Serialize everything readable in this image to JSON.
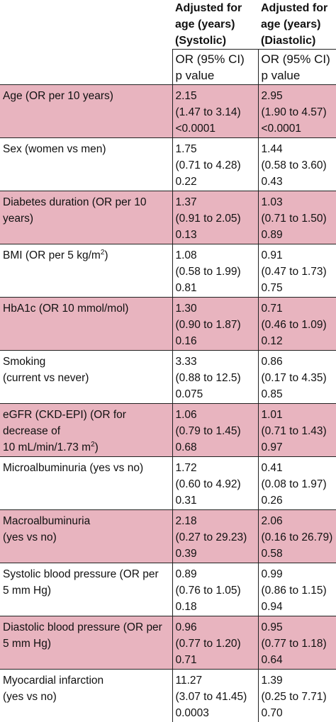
{
  "header": {
    "col2_title": [
      "Adjusted for",
      "age (years)",
      "(Systolic)"
    ],
    "col3_title": [
      "Adjusted for",
      "age (years)",
      "(Diastolic)"
    ],
    "col2_sub": [
      "OR (95% CI)",
      "p value"
    ],
    "col3_sub": [
      "OR (95% CI)",
      "p value"
    ]
  },
  "rows": [
    {
      "label": [
        "Age (OR per 10 years)"
      ],
      "sys": [
        "2.15",
        "(1.47 to 3.14)",
        "<0.0001"
      ],
      "dia": [
        "2.95",
        "(1.90 to 4.57)",
        "<0.0001"
      ]
    },
    {
      "label": [
        "Sex (women vs men)"
      ],
      "sys": [
        "1.75",
        "(0.71 to 4.28)",
        "0.22"
      ],
      "dia": [
        "1.44",
        "(0.58 to 3.60)",
        "0.43"
      ]
    },
    {
      "label": [
        "Diabetes duration (OR per 10 years)"
      ],
      "sys": [
        "1.37",
        "(0.91 to 2.05)",
        "0.13"
      ],
      "dia": [
        "1.03",
        "(0.71 to 1.50)",
        "0.89"
      ]
    },
    {
      "label": [
        "BMI (OR per 5 kg/m"
      ],
      "label_sup": "2",
      "label_tail": ")",
      "sys": [
        "1.08",
        "(0.58 to 1.99)",
        "0.81"
      ],
      "dia": [
        "0.91",
        "(0.47 to 1.73)",
        "0.75"
      ]
    },
    {
      "label": [
        "HbA1c (OR 10 mmol/mol)"
      ],
      "sys": [
        "1.30",
        "(0.90 to 1.87)",
        "0.16"
      ],
      "dia": [
        "0.71",
        "(0.46 to 1.09)",
        "0.12"
      ]
    },
    {
      "label": [
        "Smoking",
        "(current vs never)"
      ],
      "sys": [
        "3.33",
        "(0.88 to 12.5)",
        "0.075"
      ],
      "dia": [
        "0.86",
        "(0.17 to 4.35)",
        "0.85"
      ]
    },
    {
      "label": [
        "eGFR (CKD-EPI) (OR for decrease of",
        "10 mL/min/1.73 m"
      ],
      "label_sup": "2",
      "label_tail": ")",
      "sys": [
        "1.06",
        "(0.79 to 1.45)",
        "0.68"
      ],
      "dia": [
        "1.01",
        "(0.71 to 1.43)",
        "0.97"
      ]
    },
    {
      "label": [
        "Microalbuminuria (yes vs no)"
      ],
      "sys": [
        "1.72",
        "(0.60 to 4.92)",
        "0.31"
      ],
      "dia": [
        "0.41",
        "(0.08 to 1.97)",
        "0.26"
      ]
    },
    {
      "label": [
        "Macroalbuminuria",
        "(yes vs no)"
      ],
      "sys": [
        "2.18",
        "(0.27 to 29.23)",
        "0.39"
      ],
      "dia": [
        "2.06",
        "(0.16 to 26.79)",
        "0.58"
      ]
    },
    {
      "label": [
        "Systolic blood pressure (OR per",
        "5 mm Hg)"
      ],
      "sys": [
        "0.89",
        "(0.76 to 1.05)",
        "0.18"
      ],
      "dia": [
        "0.99",
        "(0.86 to 1.15)",
        "0.94"
      ]
    },
    {
      "label": [
        "Diastolic blood pressure (OR per",
        "5 mm Hg)"
      ],
      "sys": [
        "0.96",
        "(0.77 to 1.20)",
        "0.71"
      ],
      "dia": [
        "0.95",
        "(0.77 to 1.18)",
        "0.64"
      ]
    },
    {
      "label": [
        "Myocardial infarction",
        "(yes vs no)"
      ],
      "sys": [
        "11.27",
        "(3.07 to 41.45)",
        "0.0003"
      ],
      "dia": [
        "1.39",
        "(0.25 to 7.71)",
        "0.70"
      ]
    }
  ],
  "colors": {
    "pink_row": "#e8b4bf",
    "white_row": "#ffffff",
    "rule": "#222222"
  }
}
